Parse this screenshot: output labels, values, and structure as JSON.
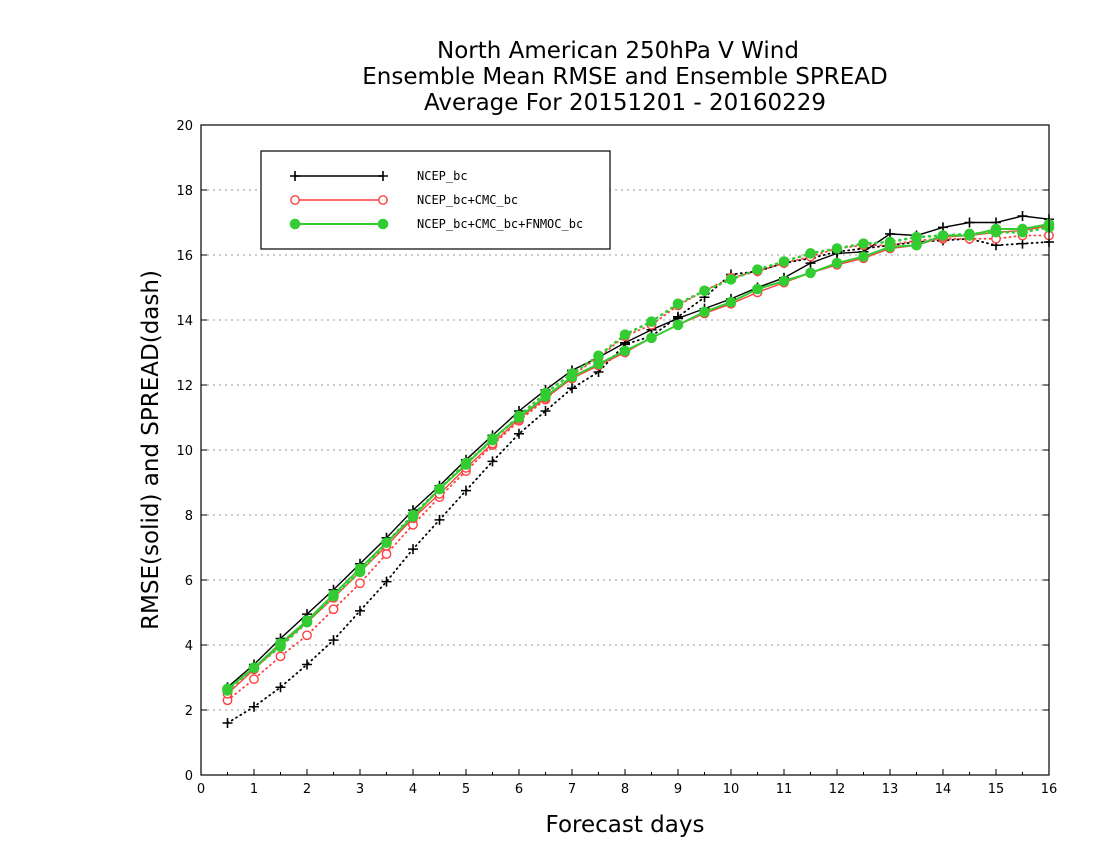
{
  "chart_data": {
    "type": "line",
    "title": [
      "North American 250hPa V Wind",
      "Ensemble Mean RMSE and Ensemble SPREAD",
      "Average For 20151201 - 20160229"
    ],
    "xlabel": "Forecast days",
    "ylabel": "RMSE(solid) and SPREAD(dash)",
    "xlim": [
      0,
      16
    ],
    "ylim": [
      0,
      20
    ],
    "xticks": [
      0,
      1,
      2,
      3,
      4,
      5,
      6,
      7,
      8,
      9,
      10,
      11,
      12,
      13,
      14,
      15,
      16
    ],
    "yticks": [
      0,
      2,
      4,
      6,
      8,
      10,
      12,
      14,
      16,
      18,
      20
    ],
    "grid": "horizontal dotted",
    "legend_position": "top-left",
    "x": [
      0.5,
      1,
      1.5,
      2,
      2.5,
      3,
      3.5,
      4,
      4.5,
      5,
      5.5,
      6,
      6.5,
      7,
      7.5,
      8,
      8.5,
      9,
      9.5,
      10,
      10.5,
      11,
      11.5,
      12,
      12.5,
      13,
      13.5,
      14,
      14.5,
      15,
      15.5,
      16
    ],
    "series": [
      {
        "name": "NCEP_bc",
        "color": "#000000",
        "marker": "plus",
        "rmse": [
          2.7,
          3.4,
          4.2,
          4.95,
          5.7,
          6.5,
          7.3,
          8.15,
          8.9,
          9.7,
          10.45,
          11.2,
          11.85,
          12.45,
          12.85,
          13.3,
          13.7,
          14.05,
          14.35,
          14.65,
          15.0,
          15.3,
          15.75,
          16.05,
          16.1,
          16.65,
          16.6,
          16.85,
          17.0,
          17.0,
          17.2,
          17.1
        ],
        "spread": [
          1.6,
          2.1,
          2.7,
          3.4,
          4.15,
          5.05,
          5.95,
          6.95,
          7.85,
          8.75,
          9.65,
          10.5,
          11.2,
          11.9,
          12.4,
          13.25,
          13.5,
          14.1,
          14.7,
          15.4,
          15.5,
          15.75,
          15.9,
          16.1,
          16.2,
          16.3,
          16.4,
          16.45,
          16.5,
          16.3,
          16.35,
          16.4
        ]
      },
      {
        "name": "NCEP_bc+CMC_bc",
        "color": "#ff4040",
        "marker": "open-circle",
        "rmse": [
          2.5,
          3.25,
          4.0,
          4.7,
          5.45,
          6.25,
          7.05,
          7.9,
          8.65,
          9.45,
          10.2,
          10.95,
          11.6,
          12.2,
          12.6,
          13.0,
          13.45,
          13.85,
          14.2,
          14.5,
          14.85,
          15.15,
          15.45,
          15.7,
          15.9,
          16.2,
          16.3,
          16.55,
          16.6,
          16.7,
          16.75,
          16.9
        ],
        "spread": [
          2.3,
          2.95,
          3.65,
          4.3,
          5.1,
          5.9,
          6.8,
          7.7,
          8.55,
          9.35,
          10.15,
          10.9,
          11.55,
          12.3,
          12.85,
          13.5,
          13.85,
          14.45,
          14.9,
          15.3,
          15.5,
          15.75,
          15.95,
          16.2,
          16.3,
          16.3,
          16.45,
          16.5,
          16.5,
          16.5,
          16.6,
          16.6
        ]
      },
      {
        "name": "NCEP_bc+CMC_bc+FNMOC_bc",
        "color": "#33cc33",
        "marker": "filled-circle",
        "rmse": [
          2.65,
          3.3,
          4.05,
          4.75,
          5.55,
          6.35,
          7.15,
          7.95,
          8.8,
          9.55,
          10.35,
          11.0,
          11.65,
          12.25,
          12.65,
          13.05,
          13.45,
          13.85,
          14.25,
          14.55,
          14.95,
          15.2,
          15.45,
          15.75,
          15.95,
          16.25,
          16.3,
          16.6,
          16.6,
          16.8,
          16.8,
          16.95
        ],
        "spread": [
          2.6,
          3.3,
          3.95,
          4.7,
          5.5,
          6.25,
          7.15,
          8.0,
          8.8,
          9.6,
          10.3,
          11.05,
          11.75,
          12.35,
          12.9,
          13.55,
          13.95,
          14.5,
          14.9,
          15.25,
          15.55,
          15.8,
          16.05,
          16.2,
          16.35,
          16.4,
          16.55,
          16.6,
          16.65,
          16.7,
          16.7,
          16.85
        ]
      }
    ]
  }
}
